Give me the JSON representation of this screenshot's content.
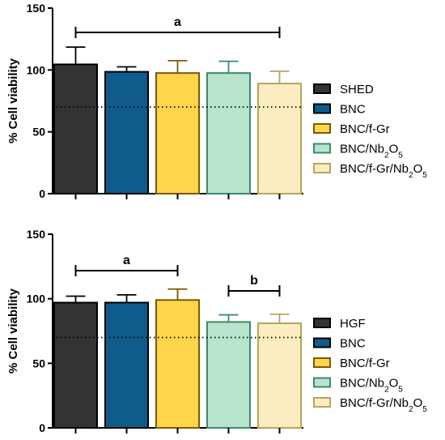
{
  "chart_data": [
    {
      "type": "bar",
      "ylabel": "% Cell viability",
      "ylim": [
        0,
        150
      ],
      "yticks": [
        0,
        50,
        100,
        150
      ],
      "reference_line": 70,
      "categories": [
        "SHED",
        "BNC",
        "BNC/f-Gr",
        "BNC/Nb2O5",
        "BNC/f-Gr/Nb2O5"
      ],
      "values": [
        104.5,
        98.5,
        97.5,
        97.5,
        89
      ],
      "errors": [
        14,
        4,
        10,
        9.5,
        10
      ],
      "colors": [
        "#333333",
        "#0f5c8c",
        "#ffd54a",
        "#b8e3cc",
        "#fcedc0"
      ],
      "edge_colors": [
        "#000000",
        "#000000",
        "#7a5a00",
        "#3b8a6e",
        "#b5a460"
      ],
      "legend": [
        "SHED",
        "BNC",
        "BNC/f-Gr",
        "BNC/Nb2O5",
        "BNC/f-Gr/Nb2O5"
      ],
      "legend_placement": "right",
      "annotations": [
        {
          "label": "a",
          "from": 0,
          "to": 4
        }
      ]
    },
    {
      "type": "bar",
      "ylabel": "% Cell viability",
      "ylim": [
        0,
        150
      ],
      "yticks": [
        0,
        50,
        100,
        150
      ],
      "reference_line": 70,
      "categories": [
        "HGF",
        "BNC",
        "BNC/f-Gr",
        "BNC/Nb2O5",
        "BNC/f-Gr/Nb2O5"
      ],
      "values": [
        97,
        97,
        99,
        82,
        81
      ],
      "errors": [
        5,
        6,
        8.5,
        5.5,
        7
      ],
      "colors": [
        "#333333",
        "#0f5c8c",
        "#ffd54a",
        "#b8e3cc",
        "#fcedc0"
      ],
      "edge_colors": [
        "#000000",
        "#000000",
        "#7a5a00",
        "#3b8a6e",
        "#b5a460"
      ],
      "legend": [
        "HGF",
        "BNC",
        "BNC/f-Gr",
        "BNC/Nb2O5",
        "BNC/f-Gr/Nb2O5"
      ],
      "legend_placement": "right",
      "annotations": [
        {
          "label": "a",
          "from": 0,
          "to": 2
        },
        {
          "label": "b",
          "from": 3,
          "to": 4
        }
      ]
    }
  ]
}
